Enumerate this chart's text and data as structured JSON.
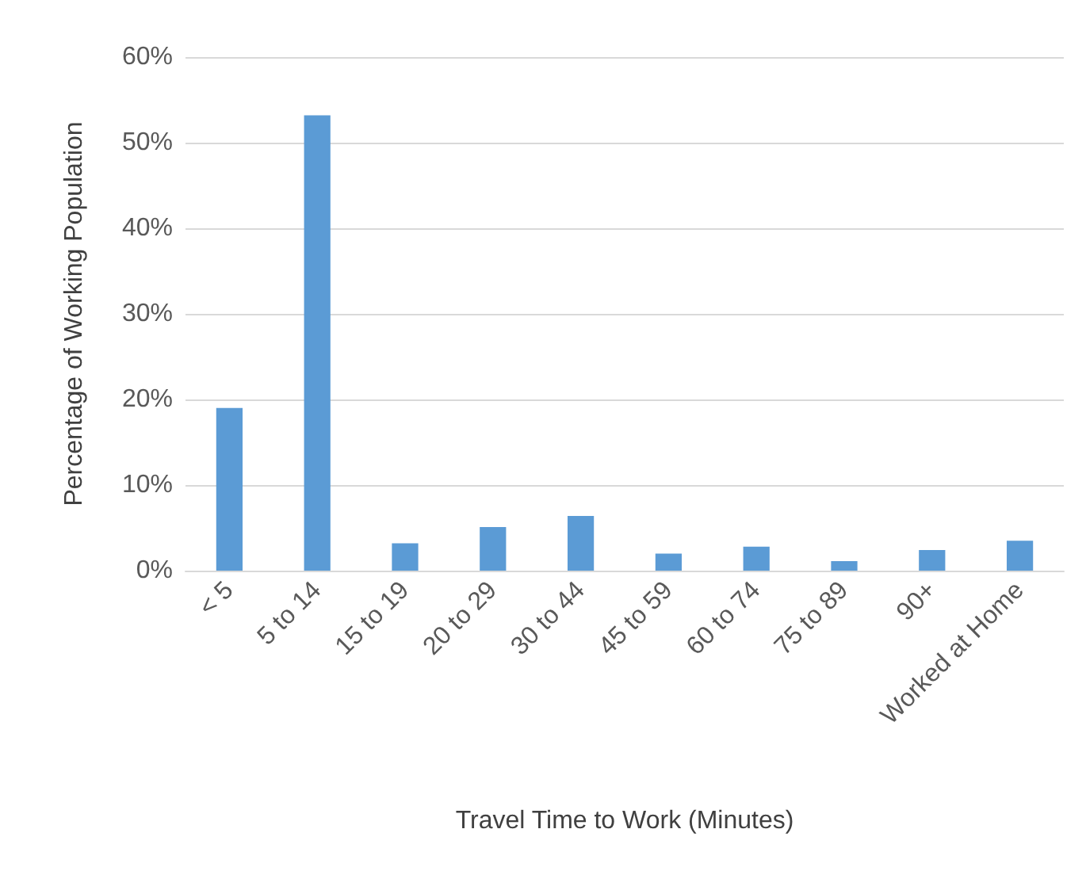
{
  "chart_data": {
    "type": "bar",
    "xlabel": "Travel Time to Work (Minutes)",
    "ylabel": "Percentage of Working Population",
    "categories": [
      "< 5",
      "5 to 14",
      "15 to 19",
      "20 to 29",
      "30 to 44",
      "45 to 59",
      "60 to 74",
      "75 to 89",
      "90+",
      "Worked at Home"
    ],
    "values": [
      19.0,
      53.2,
      3.2,
      5.1,
      6.4,
      2.0,
      2.8,
      1.1,
      2.4,
      3.5
    ],
    "color": "#5b9bd5",
    "ylim": [
      0,
      60
    ],
    "yticks": [
      {
        "value": 0,
        "label": "0%"
      },
      {
        "value": 10,
        "label": "10%"
      },
      {
        "value": 20,
        "label": "20%"
      },
      {
        "value": 30,
        "label": "30%"
      },
      {
        "value": 40,
        "label": "40%"
      },
      {
        "value": 50,
        "label": "50%"
      },
      {
        "value": 60,
        "label": "60%"
      }
    ],
    "grid": "y"
  }
}
